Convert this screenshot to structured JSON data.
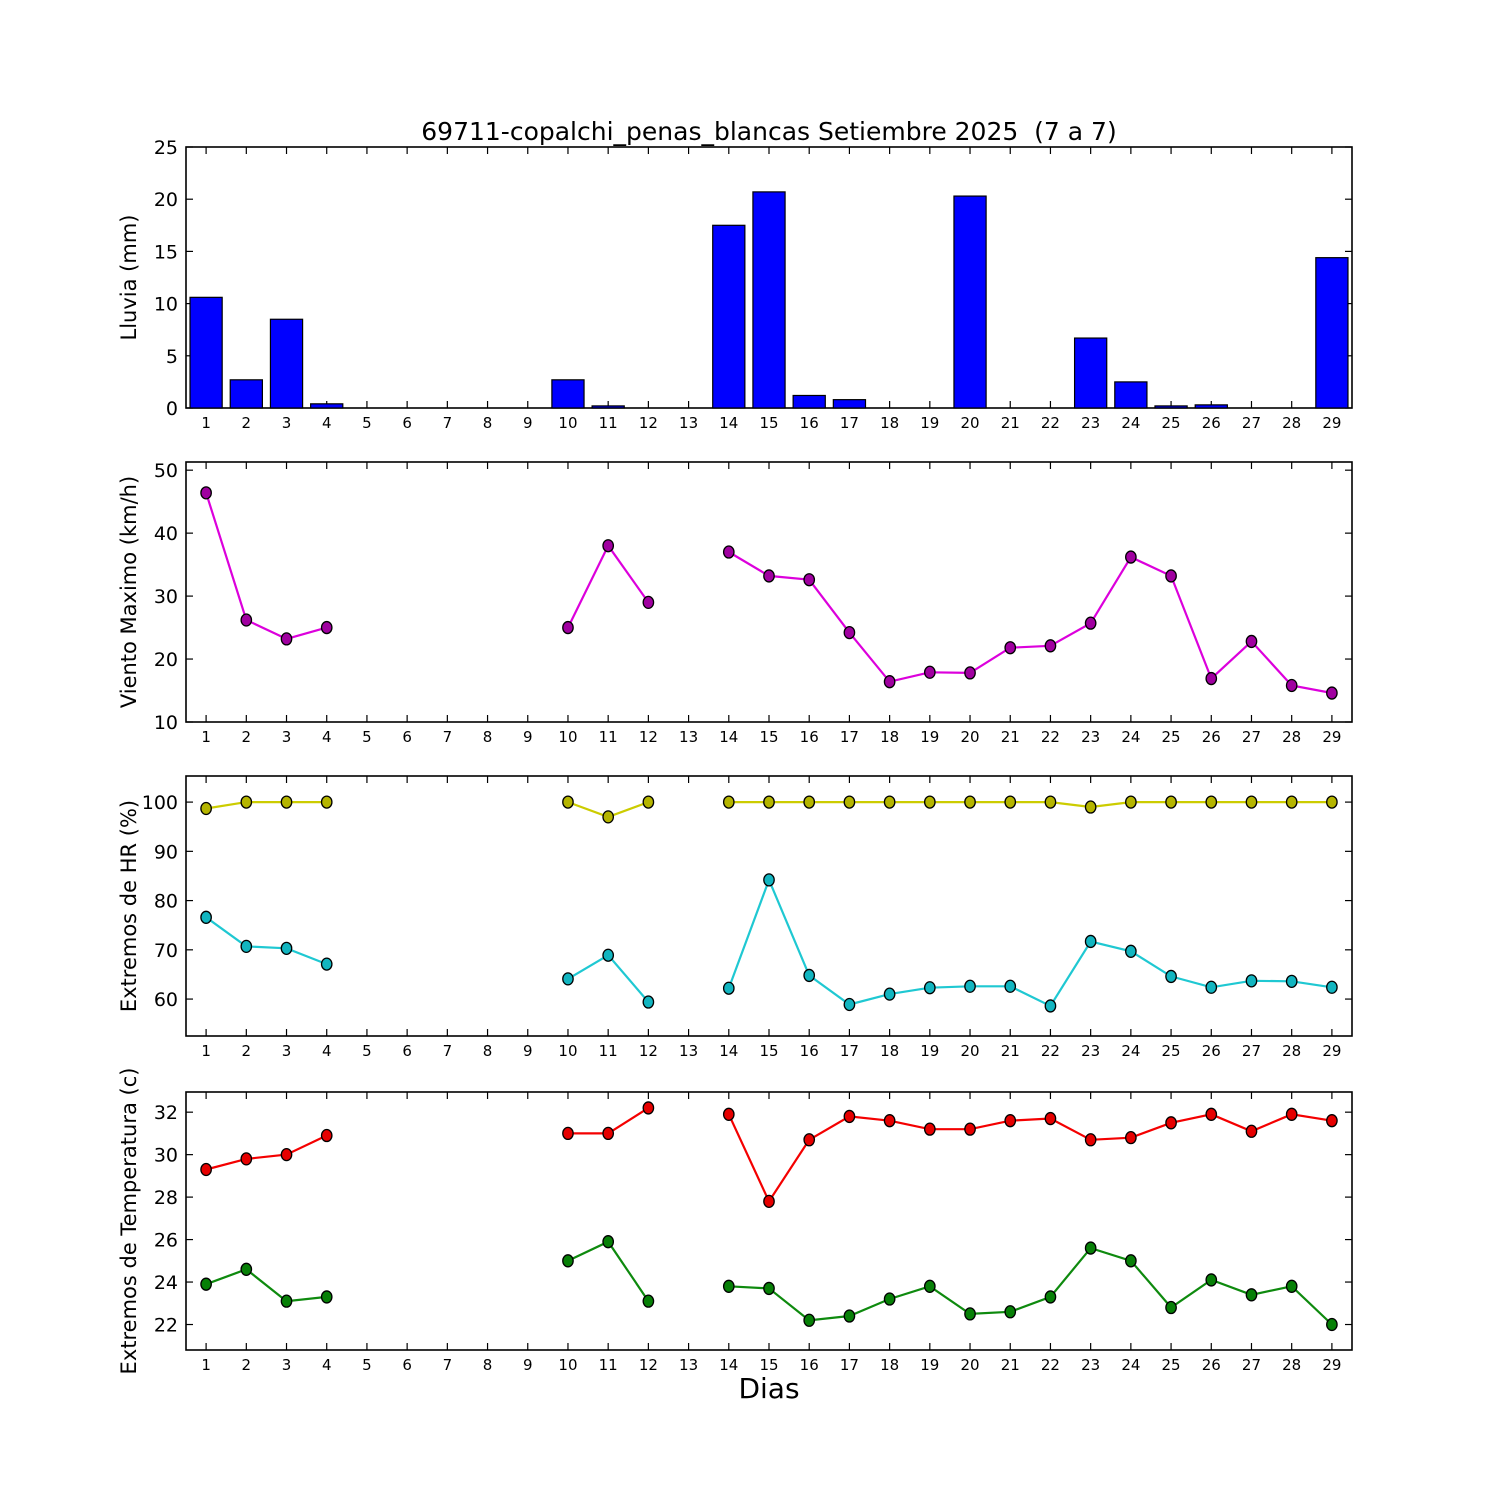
{
  "chart_data": {
    "type": "multi-panel",
    "title": "69711-copalchi_penas_blancas Setiembre 2025  (7 a 7)",
    "xlabel": "Dias",
    "days": [
      1,
      2,
      3,
      4,
      5,
      6,
      7,
      8,
      9,
      10,
      11,
      12,
      13,
      14,
      15,
      16,
      17,
      18,
      19,
      20,
      21,
      22,
      23,
      24,
      25,
      26,
      27,
      28,
      29
    ],
    "subplots": [
      {
        "type": "bar",
        "ylabel": "Lluvia (mm)",
        "ylim": [
          0,
          25
        ],
        "yticks": [
          0,
          5,
          10,
          15,
          20,
          25
        ],
        "bar_color": "#0000ff",
        "bar_edge_color": "#000000",
        "series": [
          {
            "name": "lluvia_mm",
            "values": [
              10.6,
              2.7,
              8.5,
              0.4,
              0,
              0,
              0,
              0,
              0,
              2.7,
              0.2,
              0,
              0,
              17.5,
              20.7,
              1.2,
              0.8,
              0,
              0,
              20.3,
              0,
              0,
              6.7,
              2.5,
              0.2,
              0.3,
              0,
              0,
              14.4
            ]
          }
        ]
      },
      {
        "type": "line",
        "ylabel": "Viento Maximo (km/h)",
        "ylim": [
          10,
          51.3
        ],
        "yticks": [
          10,
          20,
          30,
          40,
          50
        ],
        "series": [
          {
            "name": "viento_maximo_kmh",
            "line_color": "#dc00dc",
            "marker_color": "#a000a0",
            "values": [
              46.4,
              26.2,
              23.2,
              25.0,
              null,
              null,
              null,
              null,
              null,
              25.0,
              38.0,
              29.0,
              null,
              37.0,
              33.2,
              32.6,
              24.2,
              16.4,
              17.9,
              17.8,
              21.8,
              22.1,
              25.7,
              36.2,
              33.2,
              16.9,
              22.8,
              15.8,
              14.6
            ]
          }
        ]
      },
      {
        "type": "line",
        "ylabel": "Extremos de HR (%)",
        "ylim": [
          52.5,
          105.3
        ],
        "yticks": [
          60,
          70,
          80,
          90,
          100
        ],
        "series": [
          {
            "name": "hr_maxima_pct",
            "line_color": "#cccc00",
            "marker_color": "#b5b500",
            "values": [
              98.7,
              100,
              100,
              100,
              null,
              null,
              null,
              null,
              null,
              100,
              97,
              100,
              null,
              100,
              100,
              100,
              100,
              100,
              100,
              100,
              100,
              100,
              99,
              100,
              100,
              100,
              100,
              100,
              100
            ]
          },
          {
            "name": "hr_minima_pct",
            "line_color": "#1fc8d2",
            "marker_color": "#12b5c0",
            "values": [
              76.6,
              70.7,
              70.3,
              67.1,
              null,
              null,
              null,
              null,
              null,
              64.1,
              68.9,
              59.4,
              null,
              62.2,
              84.2,
              64.8,
              58.9,
              61.0,
              62.3,
              62.6,
              62.6,
              58.6,
              71.7,
              69.7,
              64.6,
              62.4,
              63.7,
              63.6,
              62.4
            ]
          }
        ]
      },
      {
        "type": "line",
        "ylabel": "Extremos de Temperatura (c)",
        "ylim": [
          20.8,
          32.95
        ],
        "yticks": [
          22,
          24,
          26,
          28,
          30,
          32
        ],
        "series": [
          {
            "name": "temperatura_maxima_c",
            "line_color": "#f40000",
            "marker_color": "#e60000",
            "values": [
              29.3,
              29.8,
              30.0,
              30.9,
              null,
              null,
              null,
              null,
              null,
              31.0,
              31.0,
              32.2,
              null,
              31.9,
              27.8,
              30.7,
              31.8,
              31.6,
              31.2,
              31.2,
              31.6,
              31.7,
              30.7,
              30.8,
              31.5,
              31.9,
              31.1,
              31.9,
              31.6
            ]
          },
          {
            "name": "temperatura_minima_c",
            "line_color": "#0e8a0e",
            "marker_color": "#078007",
            "values": [
              23.9,
              24.6,
              23.1,
              23.3,
              null,
              null,
              null,
              null,
              null,
              25.0,
              25.9,
              23.1,
              null,
              23.8,
              23.7,
              22.2,
              22.4,
              23.2,
              23.8,
              22.5,
              22.6,
              23.3,
              25.6,
              25.0,
              22.8,
              24.1,
              23.4,
              23.8,
              22.0
            ]
          }
        ]
      }
    ]
  }
}
